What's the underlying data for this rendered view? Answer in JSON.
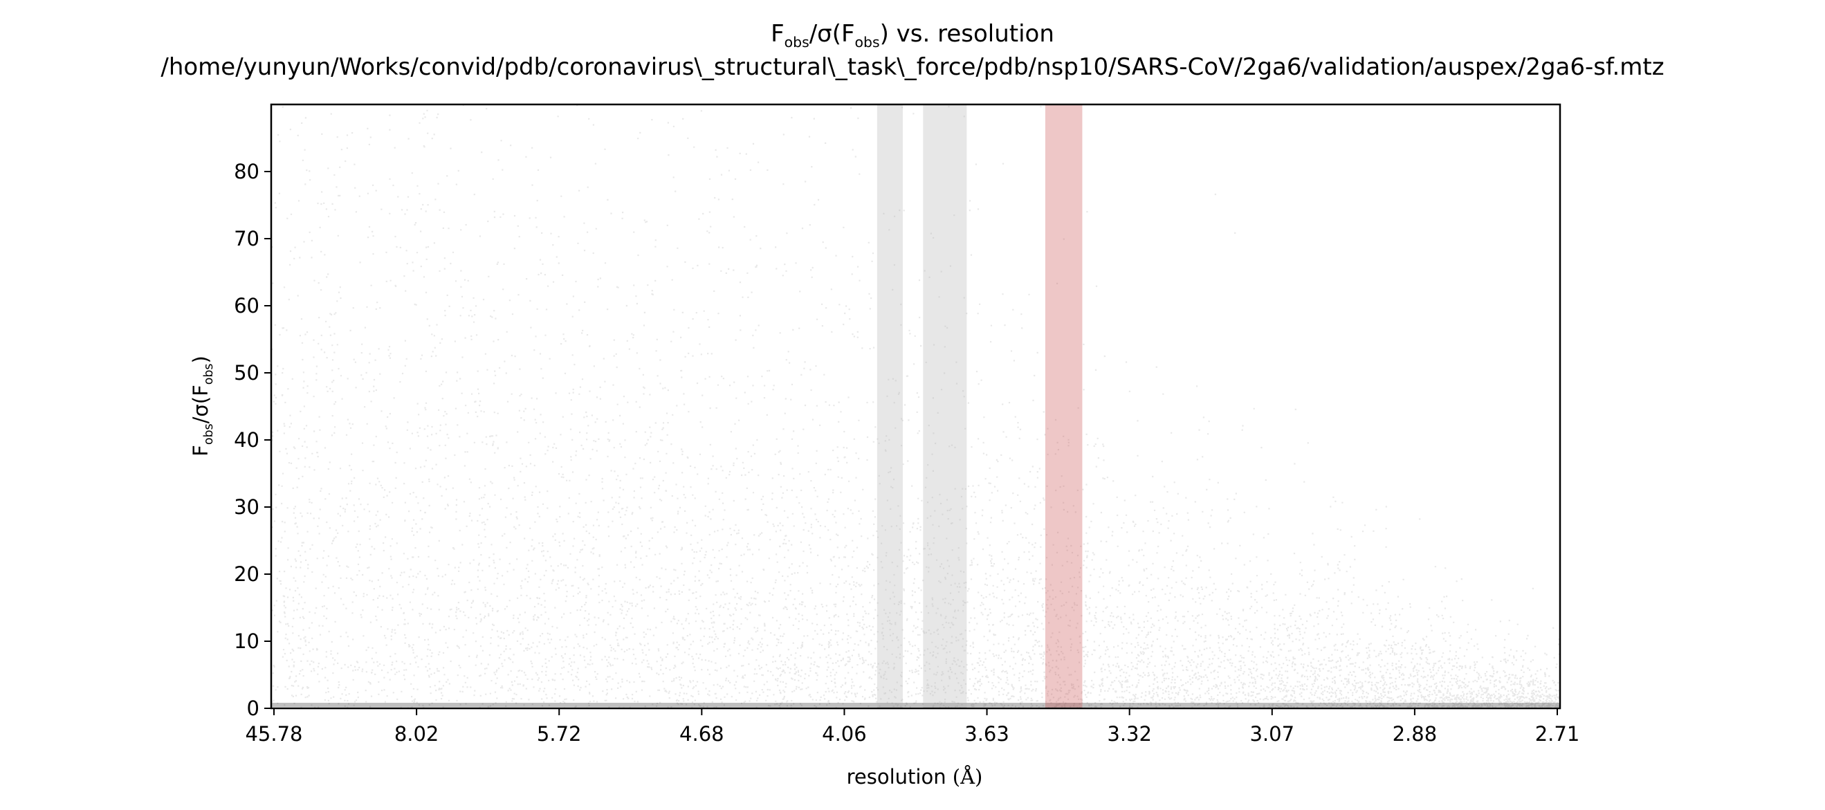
{
  "chart_data": {
    "type": "scatter",
    "title": {
      "line1_main": "F",
      "line1_sub1": "obs",
      "line1_mid": "/σ(F",
      "line1_sub2": "obs",
      "line1_end": ") vs. resolution",
      "line2": "/home/yunyun/Works/convid/pdb/coronavirus\\_structural\\_task\\_force/pdb/nsp10/SARS-CoV/2ga6/validation/auspex/2ga6-sf.mtz"
    },
    "xlabel": {
      "text": "resolution ",
      "unit": "(Å)"
    },
    "ylabel": {
      "main": "F",
      "sub1": "obs",
      "mid": "/σ(F",
      "sub2": "obs",
      "end": ")"
    },
    "x_ticks": [
      "45.78",
      "8.02",
      "5.72",
      "4.68",
      "4.06",
      "3.63",
      "3.32",
      "3.07",
      "2.88",
      "2.71"
    ],
    "y_ticks": [
      0,
      10,
      20,
      30,
      40,
      50,
      60,
      70,
      80
    ],
    "ylim": [
      0,
      90
    ],
    "xlim_resolution": [
      45.78,
      2.7
    ],
    "ice_ring_bands": [
      {
        "from": 3.93,
        "to": 3.85,
        "color": "#b4b4b4",
        "opacity": 0.32
      },
      {
        "from": 3.79,
        "to": 3.67,
        "color": "#b4b4b4",
        "opacity": 0.32
      },
      {
        "from": 3.48,
        "to": 3.4,
        "color": "#c84646",
        "opacity": 0.3
      }
    ],
    "point_color": "#000000"
  }
}
